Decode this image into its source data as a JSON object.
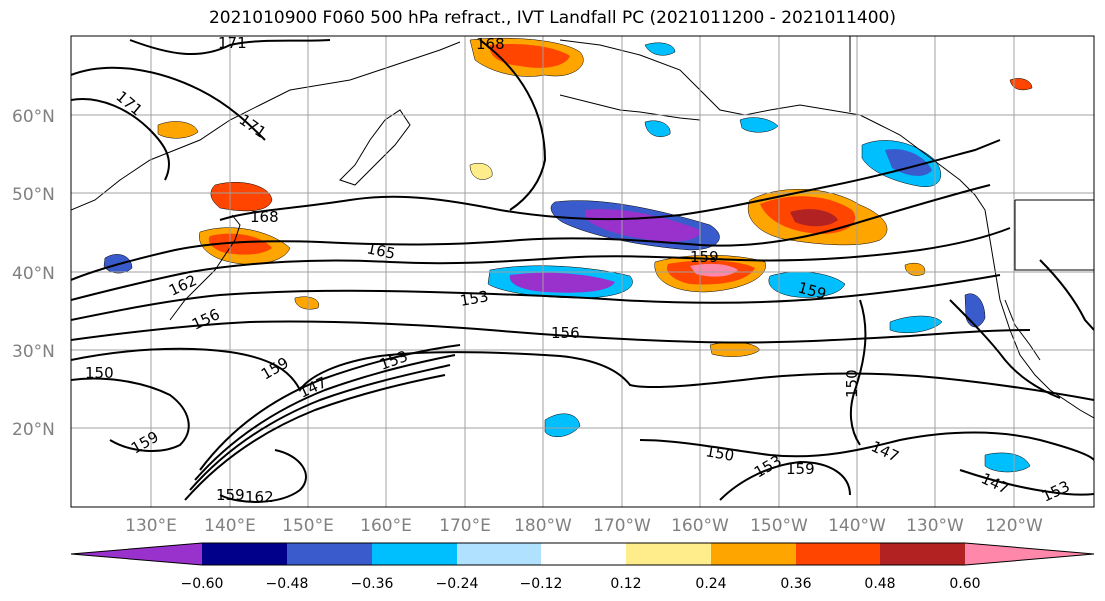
{
  "title": "2021010900 F060 500 hPa refract., IVT Landfall PC (2021011200 - 2021011400)",
  "lat_ticks": [
    "20°N",
    "30°N",
    "40°N",
    "50°N",
    "60°N"
  ],
  "lon_ticks": [
    "130°E",
    "140°E",
    "150°E",
    "160°E",
    "170°E",
    "180°W",
    "170°W",
    "160°W",
    "150°W",
    "140°W",
    "130°W",
    "120°W"
  ],
  "contour_labels": [
    "171",
    "171",
    "171",
    "168",
    "168",
    "165",
    "162",
    "156",
    "153",
    "156",
    "159",
    "150",
    "159",
    "147",
    "153",
    "159",
    "150",
    "159",
    "150",
    "147",
    "153",
    "159",
    "147",
    "153",
    "162",
    "159"
  ],
  "colorbar": {
    "colors": [
      "#9932CC",
      "#00008B",
      "#3A5BCC",
      "#00BFFF",
      "#B0E2FF",
      "#FFFFFF",
      "#FFEC8B",
      "#FFA500",
      "#FF4500",
      "#B22222",
      "#FF88AA"
    ],
    "tick_labels": [
      "−0.60",
      "−0.48",
      "−0.36",
      "−0.24",
      "−0.12",
      "0.12",
      "0.24",
      "0.36",
      "0.48",
      "0.60"
    ]
  }
}
